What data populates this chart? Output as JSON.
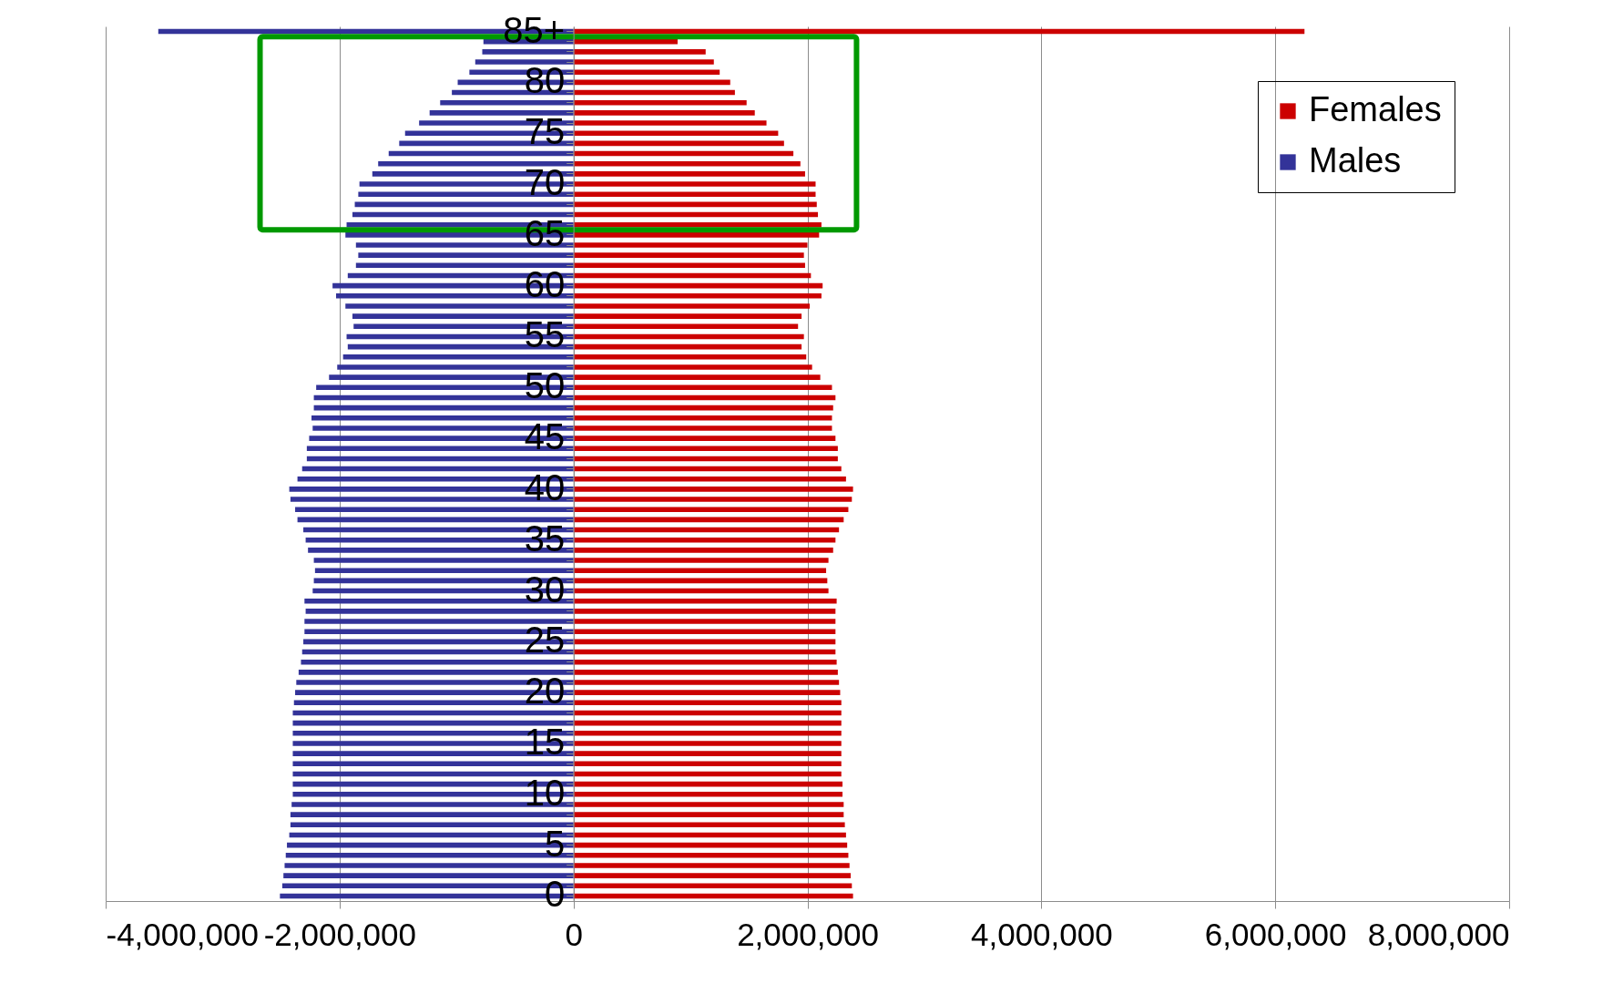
{
  "chart_data": {
    "type": "bar",
    "orientation": "horizontal",
    "stacked": true,
    "categories": [
      "85+",
      null,
      null,
      null,
      null,
      "80",
      null,
      null,
      null,
      null,
      "75",
      null,
      null,
      null,
      null,
      "70",
      null,
      null,
      null,
      null,
      "65",
      null,
      null,
      null,
      null,
      "60",
      null,
      null,
      null,
      null,
      "55",
      null,
      null,
      null,
      null,
      "50",
      null,
      null,
      null,
      null,
      "45",
      null,
      null,
      null,
      null,
      "40",
      null,
      null,
      null,
      null,
      "35",
      null,
      null,
      null,
      null,
      "30",
      null,
      null,
      null,
      null,
      "25",
      null,
      null,
      null,
      null,
      "20",
      null,
      null,
      null,
      null,
      "15",
      null,
      null,
      null,
      null,
      "10",
      null,
      null,
      null,
      null,
      "5",
      null,
      null,
      null,
      null,
      "0"
    ],
    "series": [
      {
        "name": "Females",
        "color": "#cc0000",
        "values": [
          6250000,
          890000,
          1130000,
          1200000,
          1250000,
          1340000,
          1380000,
          1480000,
          1550000,
          1650000,
          1750000,
          1800000,
          1880000,
          1940000,
          1980000,
          2070000,
          2070000,
          2080000,
          2090000,
          2120000,
          2100000,
          2000000,
          1970000,
          1980000,
          2030000,
          2130000,
          2120000,
          2020000,
          1950000,
          1920000,
          1970000,
          1950000,
          1990000,
          2040000,
          2110000,
          2210000,
          2240000,
          2220000,
          2210000,
          2210000,
          2240000,
          2260000,
          2260000,
          2290000,
          2330000,
          2390000,
          2380000,
          2350000,
          2310000,
          2270000,
          2240000,
          2220000,
          2180000,
          2160000,
          2170000,
          2180000,
          2250000,
          2240000,
          2240000,
          2240000,
          2240000,
          2240000,
          2250000,
          2260000,
          2270000,
          2280000,
          2290000,
          2290000,
          2290000,
          2290000,
          2290000,
          2290000,
          2290000,
          2290000,
          2300000,
          2300000,
          2310000,
          2310000,
          2320000,
          2330000,
          2340000,
          2350000,
          2360000,
          2370000,
          2380000,
          2390000
        ]
      },
      {
        "name": "Males",
        "color": "#333399",
        "values": [
          -3550000,
          -770000,
          -780000,
          -840000,
          -890000,
          -990000,
          -1040000,
          -1140000,
          -1230000,
          -1320000,
          -1440000,
          -1490000,
          -1580000,
          -1670000,
          -1720000,
          -1830000,
          -1840000,
          -1870000,
          -1890000,
          -1940000,
          -1950000,
          -1860000,
          -1840000,
          -1860000,
          -1930000,
          -2060000,
          -2030000,
          -1950000,
          -1890000,
          -1880000,
          -1940000,
          -1930000,
          -1970000,
          -2020000,
          -2090000,
          -2200000,
          -2220000,
          -2220000,
          -2240000,
          -2230000,
          -2260000,
          -2280000,
          -2280000,
          -2320000,
          -2360000,
          -2430000,
          -2420000,
          -2380000,
          -2360000,
          -2310000,
          -2290000,
          -2270000,
          -2220000,
          -2210000,
          -2220000,
          -2230000,
          -2300000,
          -2290000,
          -2300000,
          -2300000,
          -2310000,
          -2320000,
          -2330000,
          -2350000,
          -2370000,
          -2380000,
          -2390000,
          -2400000,
          -2400000,
          -2400000,
          -2400000,
          -2400000,
          -2400000,
          -2400000,
          -2400000,
          -2400000,
          -2410000,
          -2420000,
          -2420000,
          -2430000,
          -2450000,
          -2460000,
          -2470000,
          -2480000,
          -2490000,
          -2510000
        ]
      }
    ],
    "xlim": [
      -4000000,
      8000000
    ],
    "xticks": [
      {
        "value": -4000000,
        "label": "-4,000,000"
      },
      {
        "value": -2000000,
        "label": "-2,000,000"
      },
      0,
      {
        "value": 2000000,
        "label": "2,000,000"
      },
      {
        "value": 4000000,
        "label": "4,000,000"
      },
      {
        "value": 6000000,
        "label": "6,000,000"
      },
      {
        "value": 8000000,
        "label": "8,000,000"
      }
    ],
    "grid": "x",
    "legend": "top right"
  }
}
